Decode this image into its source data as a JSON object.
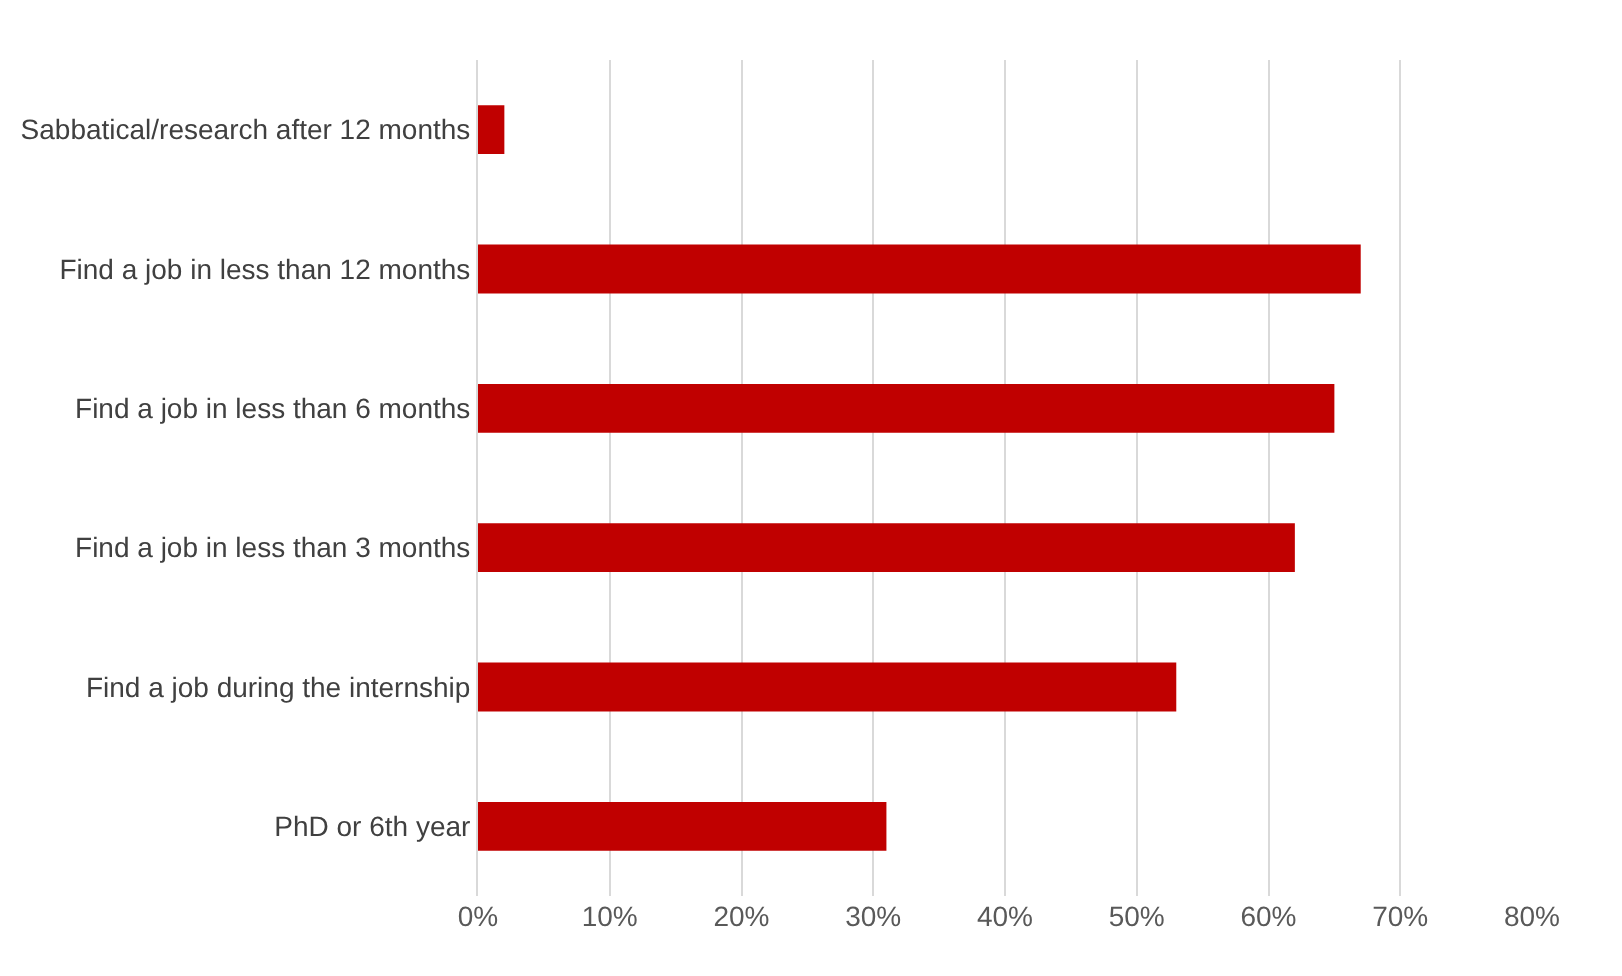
{
  "chart_data": {
    "type": "bar",
    "orientation": "horizontal",
    "categories": [
      "Sabbatical/research after 12 months",
      "Find a job in less than 12 months",
      "Find a job in less than 6 months",
      "Find a job in less than 3 months",
      "Find a job during the internship",
      "PhD or 6th year"
    ],
    "values": [
      2,
      67,
      65,
      62,
      53,
      31
    ],
    "color": "#c00000",
    "xlim": [
      0,
      80
    ],
    "xticks": [
      {
        "value": 0,
        "label": "0%"
      },
      {
        "value": 10,
        "label": "10%"
      },
      {
        "value": 20,
        "label": "20%"
      },
      {
        "value": 30,
        "label": "30%"
      },
      {
        "value": 40,
        "label": "40%"
      },
      {
        "value": 50,
        "label": "50%"
      },
      {
        "value": 60,
        "label": "60%"
      },
      {
        "value": 70,
        "label": "70%"
      },
      {
        "value": 80,
        "label": "80%"
      }
    ],
    "grid": "x"
  }
}
